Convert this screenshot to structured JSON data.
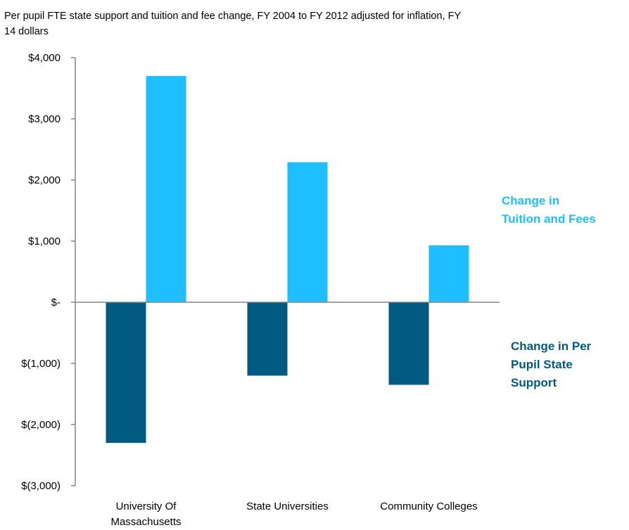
{
  "chart_data": {
    "type": "bar",
    "title_line1": "Per pupil FTE state support  and tuition and fee  change, FY 2004 to FY 2012 adjusted for inflation, FY",
    "title_line2": "14 dollars",
    "categories": [
      [
        "University Of",
        "Massachusetts"
      ],
      [
        "State Universities"
      ],
      [
        "Community Colleges"
      ]
    ],
    "series": [
      {
        "name_lines": [
          "Change in Per",
          "Pupil State",
          "Support"
        ],
        "color": "#005A82",
        "values": [
          -2300,
          -1200,
          -1350
        ]
      },
      {
        "name_lines": [
          "Change in",
          "Tuition and Fees"
        ],
        "color": "#1EBEFF",
        "values": [
          3700,
          2290,
          930
        ]
      }
    ],
    "ylim": [
      -3000,
      4000
    ],
    "yticks": [
      {
        "value": 4000,
        "label": "$4,000"
      },
      {
        "value": 3000,
        "label": "$3,000"
      },
      {
        "value": 2000,
        "label": "$2,000"
      },
      {
        "value": 1000,
        "label": "$1,000"
      },
      {
        "value": 0,
        "label": "$-"
      },
      {
        "value": -1000,
        "label": "$(1,000)"
      },
      {
        "value": -2000,
        "label": "$(2,000)"
      },
      {
        "value": -3000,
        "label": "$(3,000)"
      }
    ],
    "grid": false,
    "legend_placement": "right"
  }
}
